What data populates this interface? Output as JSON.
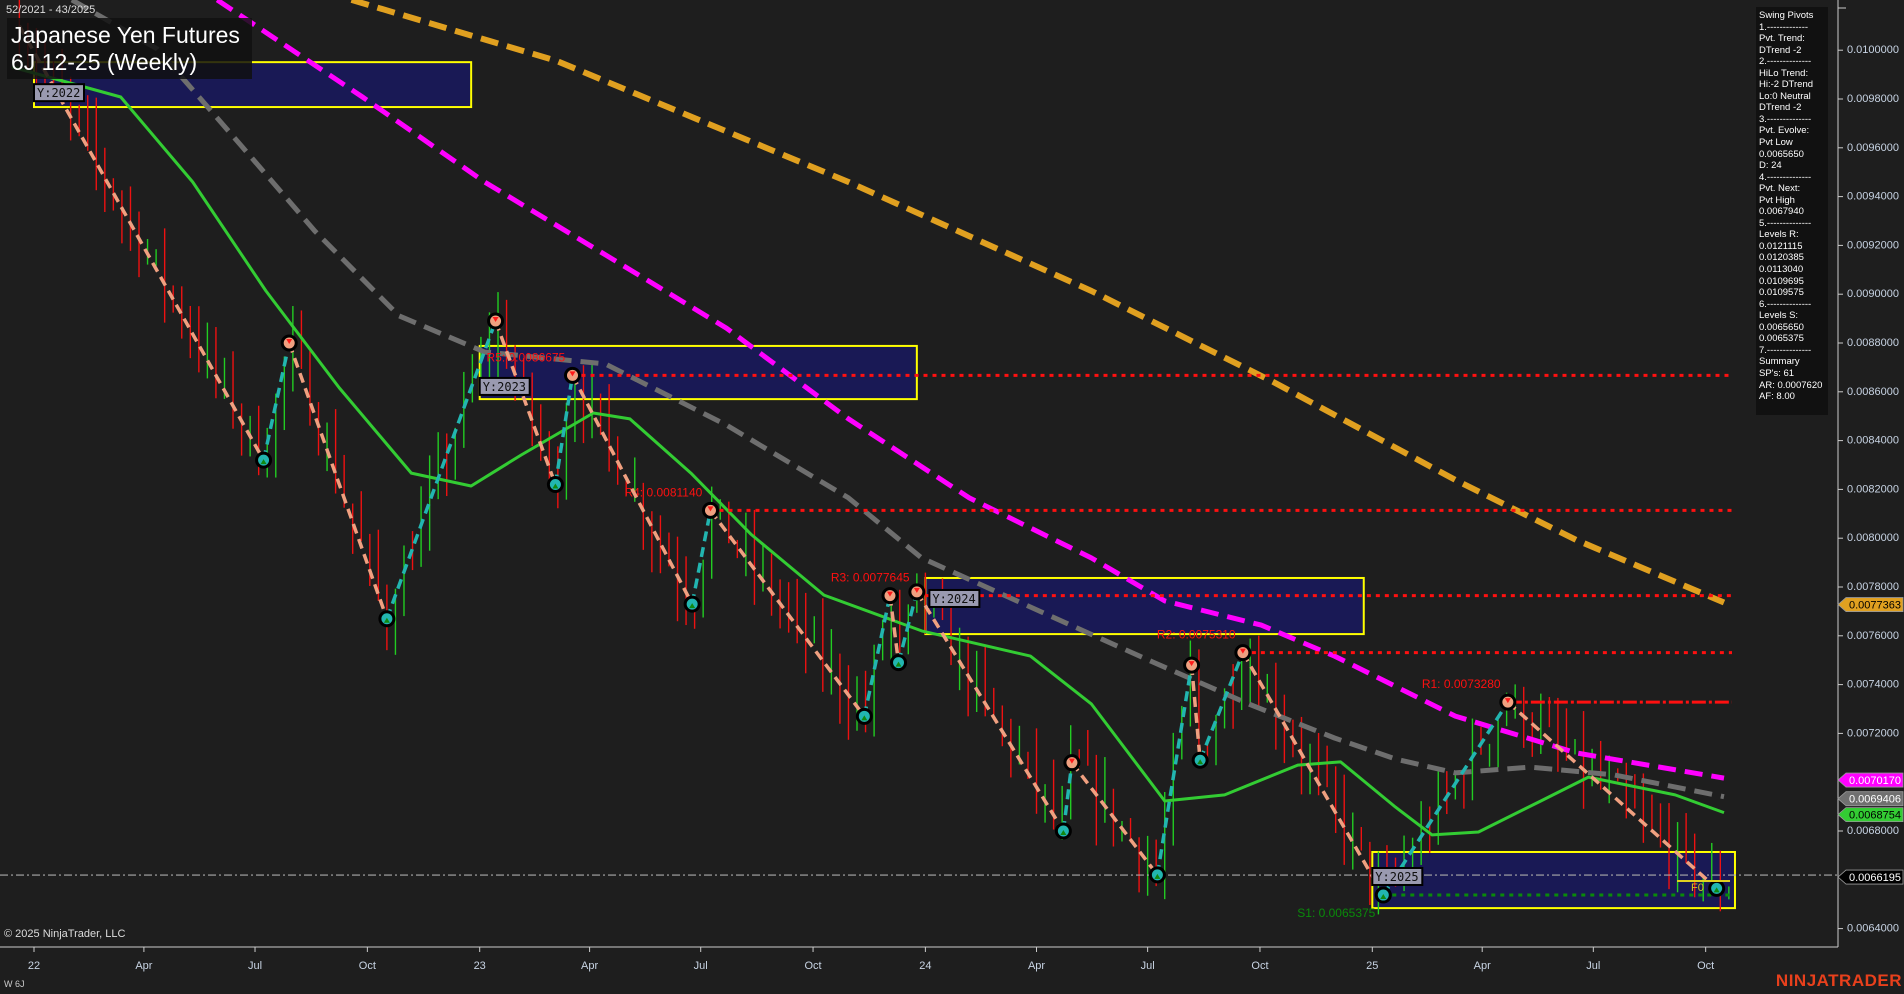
{
  "header": {
    "date_range": "52/2021 - 43/2025",
    "title": "Japanese Yen Futures",
    "subtitle": "6J 12-25 (Weekly)"
  },
  "footer": {
    "copyright": "© 2025 NinjaTrader, LLC",
    "instrument_tag": "W 6J",
    "brand": "NINJATRADER"
  },
  "info_panel": {
    "lines": [
      "Swing Pivots",
      "1.-------------",
      "Pvt. Trend:",
      "DTrend -2",
      "2.--------------",
      "HiLo Trend:",
      "Hi:-2 DTrend",
      "Lo:0 Neutral",
      "DTrend -2",
      "3.--------------",
      "Pvt. Evolve:",
      "Pvt Low",
      "0.0065650",
      "D: 24",
      "4.--------------",
      "Pvt. Next:",
      "Pvt High",
      "0.0067940",
      "5.--------------",
      "Levels R:",
      "0.0121115",
      "0.0120385",
      "0.0113040",
      "0.0109695",
      "0.0109575",
      "6.--------------",
      "Levels S:",
      "0.0065650",
      "0.0065375",
      "7.--------------",
      "Summary",
      "SP's: 61",
      "AR: 0.0007620",
      "AF: 8.00"
    ]
  },
  "chart_data": {
    "type": "line",
    "title": "Japanese Yen Futures 6J 12-25 (Weekly)",
    "xlim": [
      "2021-12-20",
      "2025-10-20"
    ],
    "ylim": [
      0.0063,
      0.0102
    ],
    "grid": false,
    "x_ticks": [
      {
        "date": "2022-01-01",
        "label": "22"
      },
      {
        "date": "2022-04-01",
        "label": "Apr"
      },
      {
        "date": "2022-07-01",
        "label": "Jul"
      },
      {
        "date": "2022-10-01",
        "label": "Oct"
      },
      {
        "date": "2023-01-01",
        "label": "23"
      },
      {
        "date": "2023-04-01",
        "label": "Apr"
      },
      {
        "date": "2023-07-01",
        "label": "Jul"
      },
      {
        "date": "2023-10-01",
        "label": "Oct"
      },
      {
        "date": "2024-01-01",
        "label": "24"
      },
      {
        "date": "2024-04-01",
        "label": "Apr"
      },
      {
        "date": "2024-07-01",
        "label": "Jul"
      },
      {
        "date": "2024-10-01",
        "label": "Oct"
      },
      {
        "date": "2025-01-01",
        "label": "25"
      },
      {
        "date": "2025-04-01",
        "label": "Apr"
      },
      {
        "date": "2025-07-01",
        "label": "Jul"
      },
      {
        "date": "2025-10-01",
        "label": "Oct"
      }
    ],
    "y_ticks": [
      "0.0100000",
      "0.0098000",
      "0.0096000",
      "0.0094000",
      "0.0092000",
      "0.0090000",
      "0.0088000",
      "0.0086000",
      "0.0084000",
      "0.0082000",
      "0.0080000",
      "0.0078000",
      "0.0076000",
      "0.0074000",
      "0.0072000",
      "0.0068000",
      "0.0064000"
    ],
    "current_price": 0.0066195,
    "price_tags": [
      {
        "value": "0.0077363",
        "color": "#e0a020",
        "text_color": "#000000"
      },
      {
        "value": "0.0070170",
        "color": "#ff00ff",
        "text_color": "#ffffff"
      },
      {
        "value": "0.0069406",
        "color": "#707070",
        "text_color": "#ffffff"
      },
      {
        "value": "0.0068754",
        "color": "#33cc33",
        "text_color": "#000000"
      },
      {
        "value": "0.0066195",
        "color": "#000000",
        "text_color": "#ffffff"
      }
    ],
    "levels": [
      {
        "name": "R5",
        "label": "R5: 0.0086675",
        "value": 0.0086675,
        "start": "2023-03-18",
        "color": "#ff1010",
        "style": "dotted"
      },
      {
        "name": "R4",
        "label": "R4: 0.0081140",
        "value": 0.008114,
        "start": "2023-07-09",
        "color": "#ff1010",
        "style": "dotted"
      },
      {
        "name": "R3",
        "label": "R3: 0.0077645",
        "value": 0.0077645,
        "start": "2023-12-25",
        "color": "#ff1010",
        "style": "dotted"
      },
      {
        "name": "R2",
        "label": "R2: 0.0075310",
        "value": 0.007531,
        "start": "2024-09-17",
        "color": "#ff1010",
        "style": "dotted"
      },
      {
        "name": "R1",
        "label": "R1: 0.0073280",
        "value": 0.007328,
        "start": "2025-04-22",
        "color": "#ff1010",
        "style": "dashdot"
      },
      {
        "name": "S1",
        "label": "S1: 0.0065375",
        "value": 0.0065375,
        "start": "2025-01-10",
        "color": "#0a8a0a",
        "style": "dotted"
      }
    ],
    "zones": [
      {
        "label": "Y:2022",
        "start": "2022-01-01",
        "end": "2022-12-25",
        "high": 0.009951,
        "low": 0.009767
      },
      {
        "label": "Y:2023",
        "start": "2023-01-01",
        "end": "2023-12-25",
        "high": 0.008788,
        "low": 0.00857
      },
      {
        "label": "Y:2024",
        "start": "2024-01-01",
        "end": "2024-12-25",
        "high": 0.007837,
        "low": 0.007607
      },
      {
        "label": "Y:2025",
        "start": "2025-01-01",
        "end": "2025-10-25",
        "high": 0.006714,
        "low": 0.006484
      }
    ],
    "f0_label": "F0",
    "pivots": [
      {
        "type": "H",
        "date": "2021-12-20",
        "price": 0.0101
      },
      {
        "type": "L",
        "date": "2022-07-08",
        "price": 0.00832
      },
      {
        "type": "H",
        "date": "2022-07-29",
        "price": 0.0088
      },
      {
        "type": "L",
        "date": "2022-10-17",
        "price": 0.00767
      },
      {
        "type": "H",
        "date": "2023-01-14",
        "price": 0.00889
      },
      {
        "type": "L",
        "date": "2023-03-04",
        "price": 0.00822
      },
      {
        "type": "H",
        "date": "2023-03-18",
        "price": 0.0086675
      },
      {
        "type": "L",
        "date": "2023-06-24",
        "price": 0.00773
      },
      {
        "type": "H",
        "date": "2023-07-09",
        "price": 0.008114
      },
      {
        "type": "L",
        "date": "2023-11-12",
        "price": 0.00727
      },
      {
        "type": "H",
        "date": "2023-12-03",
        "price": 0.0077645
      },
      {
        "type": "L",
        "date": "2023-12-10",
        "price": 0.00749
      },
      {
        "type": "H",
        "date": "2023-12-25",
        "price": 0.00778
      },
      {
        "type": "L",
        "date": "2024-04-23",
        "price": 0.0068
      },
      {
        "type": "H",
        "date": "2024-04-30",
        "price": 0.00708
      },
      {
        "type": "L",
        "date": "2024-07-09",
        "price": 0.00662
      },
      {
        "type": "H",
        "date": "2024-08-06",
        "price": 0.00748
      },
      {
        "type": "L",
        "date": "2024-08-13",
        "price": 0.00709
      },
      {
        "type": "H",
        "date": "2024-09-17",
        "price": 0.007531
      },
      {
        "type": "L",
        "date": "2025-01-10",
        "price": 0.0065375
      },
      {
        "type": "H",
        "date": "2025-04-22",
        "price": 0.007328
      },
      {
        "type": "L",
        "date": "2025-10-10",
        "price": 0.006565
      }
    ],
    "series": [
      {
        "color": "#e0a020",
        "style": "dashed",
        "points": [
          [
            "2022-09-18",
            0.010206
          ],
          [
            "2023-03-05",
            0.009956
          ],
          [
            "2023-10-30",
            0.00946
          ],
          [
            "2024-05-16",
            0.009013
          ],
          [
            "2024-10-12",
            0.00864
          ],
          [
            "2025-03-10",
            0.008239
          ],
          [
            "2025-06-17",
            0.007993
          ],
          [
            "2025-10-16",
            0.0077363
          ]
        ]
      },
      {
        "color": "#ff00ff",
        "style": "dashed",
        "points": [
          [
            "2022-05-31",
            0.010206
          ],
          [
            "2022-09-27",
            0.009808
          ],
          [
            "2023-01-05",
            0.00946
          ],
          [
            "2023-04-14",
            0.009161
          ],
          [
            "2023-07-22",
            0.008861
          ],
          [
            "2023-10-30",
            0.008489
          ],
          [
            "2024-02-06",
            0.008165
          ],
          [
            "2024-05-16",
            0.007919
          ],
          [
            "2024-07-15",
            0.007743
          ],
          [
            "2024-10-02",
            0.007644
          ],
          [
            "2024-12-01",
            0.007517
          ],
          [
            "2025-03-10",
            0.007271
          ],
          [
            "2025-06-17",
            0.00712
          ],
          [
            "2025-10-16",
            0.007017
          ]
        ]
      },
      {
        "color": "#6e6e6e",
        "style": "dashed",
        "points": [
          [
            "2022-02-01",
            0.010206
          ],
          [
            "2022-04-12",
            0.010005
          ],
          [
            "2022-06-20",
            0.009607
          ],
          [
            "2022-08-19",
            0.009259
          ],
          [
            "2022-10-27",
            0.008911
          ],
          [
            "2023-01-05",
            0.008763
          ],
          [
            "2023-04-14",
            0.008714
          ],
          [
            "2023-07-22",
            0.008464
          ],
          [
            "2023-10-30",
            0.008165
          ],
          [
            "2023-12-29",
            0.007919
          ],
          [
            "2024-03-27",
            0.007718
          ],
          [
            "2024-07-05",
            0.007493
          ],
          [
            "2024-09-22",
            0.00732
          ],
          [
            "2024-12-01",
            0.007181
          ],
          [
            "2025-01-20",
            0.007095
          ],
          [
            "2025-03-10",
            0.007038
          ],
          [
            "2025-05-10",
            0.007062
          ],
          [
            "2025-07-18",
            0.00703
          ],
          [
            "2025-10-16",
            0.0069406
          ]
        ]
      },
      {
        "color": "#33cc33",
        "style": "solid",
        "points": [
          [
            "2021-12-14",
            0.009931
          ],
          [
            "2022-03-13",
            0.009808
          ],
          [
            "2022-05-11",
            0.00946
          ],
          [
            "2022-07-10",
            0.009013
          ],
          [
            "2022-09-08",
            0.008616
          ],
          [
            "2022-11-06",
            0.008267
          ],
          [
            "2022-12-25",
            0.008214
          ],
          [
            "2023-02-04",
            0.008341
          ],
          [
            "2023-04-04",
            0.008513
          ],
          [
            "2023-05-04",
            0.008489
          ],
          [
            "2023-06-23",
            0.008267
          ],
          [
            "2023-08-11",
            0.008017
          ],
          [
            "2023-10-10",
            0.007767
          ],
          [
            "2023-12-29",
            0.00762
          ],
          [
            "2024-03-27",
            0.007517
          ],
          [
            "2024-05-16",
            0.00732
          ],
          [
            "2024-07-15",
            0.006923
          ],
          [
            "2024-09-02",
            0.006948
          ],
          [
            "2024-11-01",
            0.00707
          ],
          [
            "2024-12-06",
            0.007083
          ],
          [
            "2025-01-20",
            0.006898
          ],
          [
            "2025-02-19",
            0.006784
          ],
          [
            "2025-03-29",
            0.006796
          ],
          [
            "2025-05-19",
            0.006923
          ],
          [
            "2025-06-27",
            0.007021
          ],
          [
            "2025-09-06",
            0.006948
          ],
          [
            "2025-10-16",
            0.0068754
          ]
        ]
      }
    ]
  }
}
